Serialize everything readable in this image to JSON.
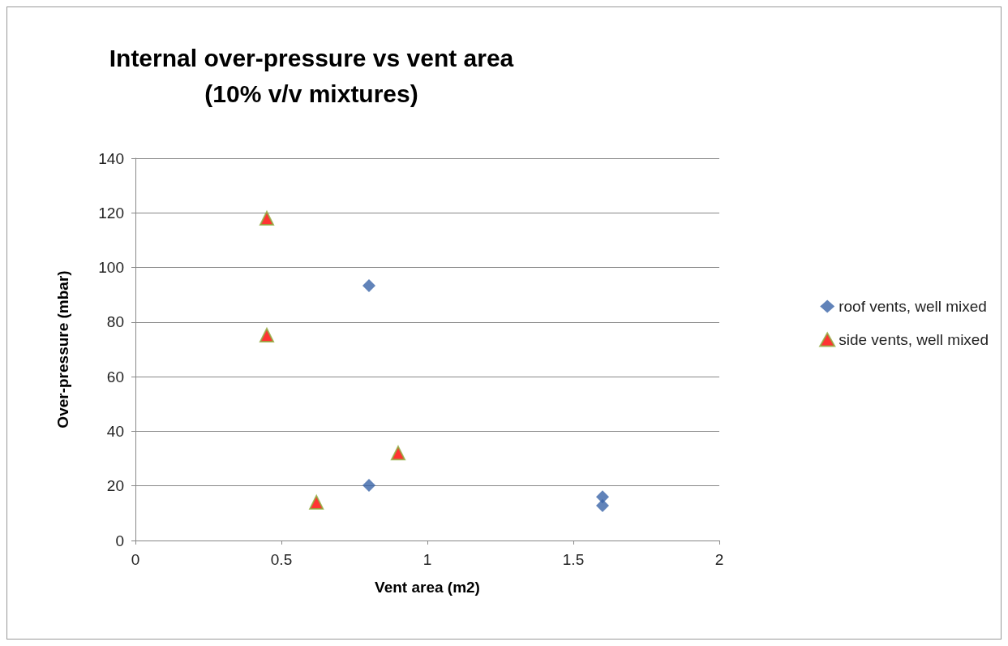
{
  "chart_data": {
    "type": "scatter",
    "title": "Internal over-pressure vs vent area\n(10% v/v mixtures)",
    "xlabel": "Vent area (m2)",
    "ylabel": "Over-pressure (mbar)",
    "xlim": [
      0,
      2
    ],
    "xticks": [
      0,
      0.5,
      1,
      1.5,
      2
    ],
    "ylim": [
      0,
      140
    ],
    "yticks": [
      0,
      20,
      40,
      60,
      80,
      100,
      120,
      140
    ],
    "grid": "y",
    "legend": "right",
    "series": [
      {
        "name": "roof vents, well mixed",
        "color": "#3a64a8",
        "marker": "diamond",
        "x": [
          0.8,
          0.8,
          1.6,
          1.6
        ],
        "values": [
          93.3,
          20.2,
          16,
          12.8
        ]
      },
      {
        "name": "side vents, well mixed",
        "color": "#ff0000",
        "marker": "triangle",
        "x": [
          0.45,
          0.45,
          0.62,
          0.9
        ],
        "values": [
          118,
          75.2,
          14,
          32
        ]
      }
    ]
  }
}
